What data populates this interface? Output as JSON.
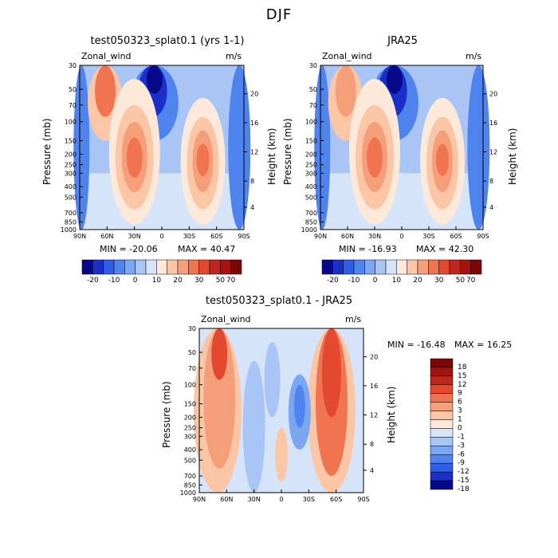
{
  "page": {
    "season_title": "DJF"
  },
  "panels": [
    {
      "id": "model",
      "title": "test050323_splat0.1 (yrs 1-1)",
      "left_label": "Zonal_wind",
      "right_label": "m/s",
      "min_label": "MIN = -20.06",
      "max_label": "MAX = 40.47"
    },
    {
      "id": "obs",
      "title": "JRA25",
      "left_label": "Zonal_wind",
      "right_label": "m/s",
      "min_label": "MIN = -16.93",
      "max_label": "MAX = 42.30"
    },
    {
      "id": "diff",
      "title": "test050323_splat0.1 - JRA25",
      "left_label": "Zonal_wind",
      "right_label": "m/s",
      "min_label": "MIN = -16.48",
      "max_label": "MAX = 16.25"
    }
  ],
  "axes": {
    "y_left_label": "Pressure (mb)",
    "y_right_label": "Height (km)",
    "pressure_ticks": [
      "30",
      "50",
      "70",
      "100",
      "150",
      "200",
      "250",
      "300",
      "400",
      "500",
      "700",
      "850",
      "1000"
    ],
    "height_ticks": [
      "20",
      "16",
      "12",
      "8",
      "4"
    ],
    "lat_ticks": [
      "90N",
      "60N",
      "30N",
      "0",
      "30S",
      "60S",
      "90S"
    ]
  },
  "colorbars": {
    "full": {
      "labels": [
        "-20",
        "-10",
        "0",
        "10",
        "20",
        "30",
        "50",
        "70"
      ],
      "colors": [
        "#08088a",
        "#1c2fc9",
        "#2e5de6",
        "#4f84ee",
        "#7aa6f2",
        "#a9c5f6",
        "#d6e4f9",
        "#fde9da",
        "#fbc6a6",
        "#f59f7a",
        "#f0744f",
        "#e2492f",
        "#c0271c",
        "#a3140f",
        "#7c0606"
      ]
    },
    "diff": {
      "labels": [
        "18",
        "15",
        "12",
        "9",
        "6",
        "3",
        "1",
        "0",
        "-1",
        "-3",
        "-6",
        "-9",
        "-12",
        "-15",
        "-18"
      ],
      "colors": [
        "#7c0606",
        "#a3140f",
        "#c0271c",
        "#e2492f",
        "#f0744f",
        "#f59f7a",
        "#fbc6a6",
        "#fde9da",
        "#d6e4f9",
        "#a9c5f6",
        "#7aa6f2",
        "#4f84ee",
        "#2e5de6",
        "#1c2fc9",
        "#08088a"
      ]
    }
  },
  "chart_data": [
    {
      "type": "heatmap",
      "title": "test050323_splat0.1 (yrs 1-1)",
      "variable": "Zonal_wind",
      "units": "m/s",
      "x": [
        "90N",
        "60N",
        "30N",
        "0",
        "30S",
        "60S",
        "90S"
      ],
      "y": [
        30,
        50,
        70,
        100,
        150,
        200,
        250,
        300,
        400,
        500,
        700,
        850,
        1000
      ],
      "ylabel": "Pressure (mb)",
      "y2label": "Height (km)",
      "min": -20.06,
      "max": 40.47,
      "features": [
        {
          "kind": "westerly_jet",
          "lat": 30,
          "pressure": 200,
          "value": 40
        },
        {
          "kind": "westerly_jet",
          "lat": -45,
          "pressure": 200,
          "value": 35
        },
        {
          "kind": "stratospheric_jet",
          "lat": 65,
          "pressure": 30,
          "value": 25
        },
        {
          "kind": "easterlies",
          "lat": 10,
          "pressure": 30,
          "value": -20
        }
      ]
    },
    {
      "type": "heatmap",
      "title": "JRA25",
      "variable": "Zonal_wind",
      "units": "m/s",
      "x": [
        "90N",
        "60N",
        "30N",
        "0",
        "30S",
        "60S",
        "90S"
      ],
      "y": [
        30,
        50,
        70,
        100,
        150,
        200,
        250,
        300,
        400,
        500,
        700,
        850,
        1000
      ],
      "ylabel": "Pressure (mb)",
      "y2label": "Height (km)",
      "min": -16.93,
      "max": 42.3,
      "features": [
        {
          "kind": "westerly_jet",
          "lat": 30,
          "pressure": 200,
          "value": 42
        },
        {
          "kind": "westerly_jet",
          "lat": -45,
          "pressure": 220,
          "value": 32
        },
        {
          "kind": "stratospheric_jet",
          "lat": 60,
          "pressure": 30,
          "value": 15
        },
        {
          "kind": "easterlies",
          "lat": 5,
          "pressure": 30,
          "value": -17
        }
      ]
    },
    {
      "type": "heatmap",
      "title": "test050323_splat0.1 - JRA25",
      "variable": "Zonal_wind",
      "units": "m/s",
      "x": [
        "90N",
        "60N",
        "30N",
        "0",
        "30S",
        "60S",
        "90S"
      ],
      "y": [
        30,
        50,
        70,
        100,
        150,
        200,
        250,
        300,
        400,
        500,
        700,
        850,
        1000
      ],
      "ylabel": "Pressure (mb)",
      "y2label": "Height (km)",
      "min": -16.48,
      "max": 16.25,
      "features": [
        {
          "kind": "positive_anomaly",
          "lat": 65,
          "pressure": 40,
          "value": 16
        },
        {
          "kind": "positive_anomaly",
          "lat": -60,
          "pressure": 60,
          "value": 12
        },
        {
          "kind": "negative_anomaly",
          "lat": -20,
          "pressure": 130,
          "value": -9
        }
      ]
    }
  ]
}
